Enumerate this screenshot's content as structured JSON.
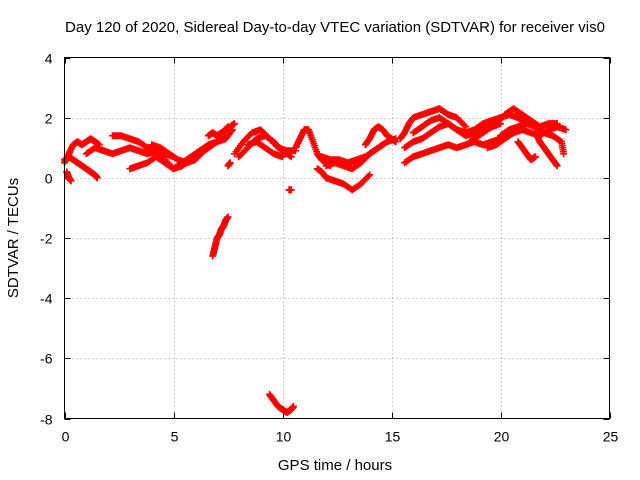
{
  "chart_data": {
    "type": "scatter",
    "title": "Day 120 of 2020, Sidereal Day-to-day VTEC variation (SDTVAR) for receiver vis0",
    "xlabel": "GPS time / hours",
    "ylabel": "SDTVAR / TECUs",
    "xlim": [
      0,
      25
    ],
    "ylim": [
      -8,
      4
    ],
    "xticks": [
      "0",
      "5",
      "10",
      "15",
      "20",
      "25"
    ],
    "xtick_values": [
      0,
      5,
      10,
      15,
      20,
      25
    ],
    "yticks": [
      "-8",
      "-6",
      "-4",
      "-2",
      "0",
      "2",
      "4"
    ],
    "ytick_values": [
      -8,
      -6,
      -4,
      -2,
      0,
      2,
      4
    ],
    "grid": true,
    "marker": "+",
    "series": [
      {
        "name": "SDTVAR",
        "color": "#ff0000",
        "tracks": [
          {
            "x": [
              0.0,
              0.2,
              0.4,
              0.6,
              0.8,
              1.0,
              1.2,
              1.4,
              1.6
            ],
            "y": [
              0.5,
              0.8,
              1.1,
              1.2,
              1.1,
              1.2,
              1.3,
              1.2,
              1.1
            ]
          },
          {
            "x": [
              0.0,
              0.2,
              0.4,
              0.6,
              0.8,
              1.0,
              1.2,
              1.4,
              1.5
            ],
            "y": [
              0.6,
              0.7,
              0.6,
              0.5,
              0.4,
              0.3,
              0.2,
              0.1,
              0.0
            ]
          },
          {
            "x": [
              0.1,
              0.2,
              0.3
            ],
            "y": [
              0.2,
              0.0,
              -0.1
            ]
          },
          {
            "x": [
              1.0,
              1.4,
              1.8,
              2.2,
              2.6,
              3.0,
              3.4,
              3.8,
              4.2,
              4.6,
              5.0
            ],
            "y": [
              0.8,
              1.0,
              0.9,
              0.8,
              0.9,
              1.0,
              0.9,
              0.8,
              0.9,
              0.8,
              0.7
            ]
          },
          {
            "x": [
              2.2,
              2.6,
              3.0,
              3.4,
              3.8,
              4.2,
              4.6,
              5.0,
              5.4,
              5.8,
              6.2,
              6.6,
              7.0,
              7.4
            ],
            "y": [
              1.4,
              1.4,
              1.3,
              1.2,
              1.0,
              0.9,
              0.6,
              0.3,
              0.4,
              0.6,
              0.8,
              1.0,
              1.2,
              1.4
            ]
          },
          {
            "x": [
              3.0,
              3.4,
              3.8,
              4.2,
              4.6,
              5.0,
              5.4,
              5.8,
              6.2,
              6.6,
              7.0,
              7.4,
              7.7
            ],
            "y": [
              0.3,
              0.4,
              0.5,
              0.7,
              0.5,
              0.3,
              0.5,
              0.7,
              0.9,
              1.1,
              1.2,
              1.3,
              1.6
            ]
          },
          {
            "x": [
              4.0,
              4.4,
              4.8,
              5.2,
              5.6,
              6.0,
              6.4,
              6.8
            ],
            "y": [
              1.1,
              1.0,
              0.8,
              0.6,
              0.5,
              0.6,
              0.9,
              1.1
            ]
          },
          {
            "x": [
              6.6,
              6.8,
              7.0,
              7.2,
              7.4,
              7.5
            ],
            "y": [
              1.4,
              1.5,
              1.4,
              1.5,
              1.6,
              1.7
            ]
          },
          {
            "x": [
              6.8,
              6.9,
              7.0,
              7.1,
              7.2,
              7.3,
              7.4,
              7.5
            ],
            "y": [
              -2.6,
              -2.3,
              -2.0,
              -1.9,
              -1.7,
              -1.6,
              -1.4,
              -1.3
            ]
          },
          {
            "x": [
              7.5,
              7.6
            ],
            "y": [
              0.4,
              0.5
            ]
          },
          {
            "x": [
              7.6,
              7.8
            ],
            "y": [
              1.7,
              1.8
            ]
          },
          {
            "x": [
              7.8,
              8.2,
              8.6,
              9.0,
              9.4,
              9.8,
              10.2,
              10.6
            ],
            "y": [
              0.8,
              1.2,
              1.5,
              1.6,
              1.3,
              1.0,
              0.9,
              0.9
            ]
          },
          {
            "x": [
              8.0,
              8.4,
              8.8,
              9.2,
              9.6,
              10.0,
              10.4
            ],
            "y": [
              0.7,
              1.0,
              1.3,
              1.4,
              1.2,
              0.9,
              0.7
            ]
          },
          {
            "x": [
              8.4,
              8.8,
              9.2,
              9.6,
              10.0
            ],
            "y": [
              1.1,
              1.2,
              1.0,
              0.8,
              0.7
            ]
          },
          {
            "x": [
              9.4,
              9.6,
              9.8,
              10.0,
              10.2,
              10.4,
              10.5
            ],
            "y": [
              -7.2,
              -7.4,
              -7.6,
              -7.7,
              -7.8,
              -7.7,
              -7.6
            ]
          },
          {
            "x": [
              10.3,
              10.4
            ],
            "y": [
              -0.4,
              -0.4
            ]
          },
          {
            "x": [
              10.6,
              10.8,
              11.0,
              11.2,
              11.4,
              11.6,
              11.8,
              12.0,
              12.2
            ],
            "y": [
              1.0,
              1.3,
              1.6,
              1.6,
              1.2,
              0.8,
              0.6,
              0.5,
              0.4
            ]
          },
          {
            "x": [
              11.6,
              11.8,
              12.0,
              12.4,
              12.8,
              13.2,
              13.6,
              14.0
            ],
            "y": [
              0.3,
              0.2,
              0.0,
              -0.1,
              -0.2,
              -0.4,
              -0.2,
              0.1
            ]
          },
          {
            "x": [
              11.8,
              12.2,
              12.6,
              13.0,
              13.4,
              13.8,
              14.2,
              14.6
            ],
            "y": [
              0.7,
              0.6,
              0.6,
              0.5,
              0.6,
              0.7,
              0.9,
              1.1
            ]
          },
          {
            "x": [
              12.0,
              12.4,
              12.8,
              13.2,
              13.6,
              14.0,
              14.4,
              14.8,
              15.2
            ],
            "y": [
              0.4,
              0.5,
              0.4,
              0.3,
              0.5,
              0.8,
              1.0,
              1.2,
              1.3
            ]
          },
          {
            "x": [
              13.8,
              14.0,
              14.2,
              14.4,
              14.6,
              14.8,
              15.0,
              15.2
            ],
            "y": [
              1.1,
              1.3,
              1.6,
              1.7,
              1.6,
              1.4,
              1.3,
              1.2
            ]
          },
          {
            "x": [
              15.4,
              15.6,
              15.8,
              16.0,
              16.4,
              16.8,
              17.2,
              17.6,
              18.0,
              18.4
            ],
            "y": [
              1.3,
              1.5,
              1.8,
              2.0,
              2.1,
              2.2,
              2.3,
              2.1,
              2.0,
              1.7
            ]
          },
          {
            "x": [
              15.6,
              16.0,
              16.4,
              16.8,
              17.2,
              17.6,
              18.0,
              18.4,
              18.8,
              19.2,
              19.6,
              20.0
            ],
            "y": [
              1.0,
              1.2,
              1.3,
              1.5,
              1.7,
              1.8,
              1.6,
              1.4,
              1.5,
              1.6,
              1.7,
              1.8
            ]
          },
          {
            "x": [
              15.6,
              16.0,
              16.4,
              16.8,
              17.2,
              17.6,
              18.0,
              18.4,
              18.8,
              19.2,
              19.6,
              20.0,
              20.4
            ],
            "y": [
              0.5,
              0.7,
              0.8,
              0.9,
              1.0,
              1.1,
              1.0,
              1.1,
              1.2,
              1.1,
              1.2,
              1.3,
              1.4
            ]
          },
          {
            "x": [
              16.0,
              16.4,
              16.8,
              17.2,
              17.6,
              18.0,
              18.4,
              18.8,
              19.2,
              19.6,
              20.0,
              20.4,
              20.8,
              21.2
            ],
            "y": [
              1.5,
              1.7,
              1.9,
              2.0,
              1.8,
              1.6,
              1.5,
              1.6,
              1.8,
              1.9,
              2.0,
              2.1,
              2.0,
              1.8
            ]
          },
          {
            "x": [
              18.6,
              19.0,
              19.4,
              19.8,
              20.2,
              20.6,
              21.0,
              21.4,
              21.8,
              22.2,
              22.6
            ],
            "y": [
              1.2,
              1.4,
              1.6,
              1.8,
              2.1,
              2.3,
              2.1,
              1.9,
              1.7,
              1.8,
              1.8
            ]
          },
          {
            "x": [
              19.4,
              19.8,
              20.2,
              20.6,
              21.0,
              21.4,
              21.8,
              22.2,
              22.6,
              23.0
            ],
            "y": [
              1.0,
              1.1,
              1.3,
              1.5,
              1.6,
              1.5,
              1.4,
              1.6,
              1.7,
              1.6
            ]
          },
          {
            "x": [
              20.0,
              20.4,
              20.8,
              21.2,
              21.6,
              22.0,
              22.4,
              22.8,
              22.9
            ],
            "y": [
              1.4,
              1.6,
              1.7,
              1.8,
              1.7,
              1.5,
              1.4,
              1.2,
              0.8
            ]
          },
          {
            "x": [
              20.8,
              21.0,
              21.2,
              21.4,
              21.6
            ],
            "y": [
              1.2,
              1.0,
              0.8,
              0.6,
              0.7
            ]
          },
          {
            "x": [
              21.6,
              21.8,
              22.0,
              22.2,
              22.4,
              22.6
            ],
            "y": [
              1.5,
              1.2,
              1.0,
              0.8,
              0.6,
              0.4
            ]
          }
        ]
      }
    ]
  }
}
